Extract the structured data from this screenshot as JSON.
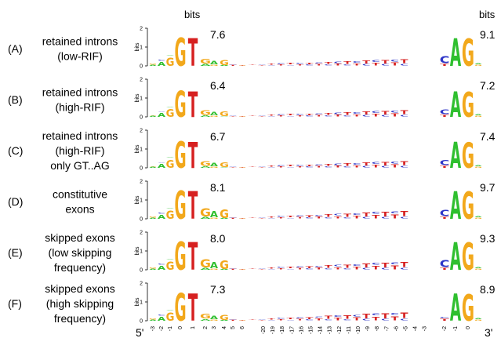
{
  "header": {
    "bits_left": "bits",
    "bits_right": "bits"
  },
  "axis": {
    "y_label": "bits",
    "y_ticks": [
      "2",
      "1",
      "0"
    ],
    "end_5": "5'",
    "end_3": "3'",
    "donor_positions": [
      "-3",
      "-2",
      "-1",
      "0",
      "1",
      "2",
      "3",
      "4",
      "5",
      "6"
    ],
    "intron_positions": [
      "-20",
      "-19",
      "-18",
      "-17",
      "-16",
      "-15",
      "-14",
      "-13",
      "-12",
      "-11",
      "-10",
      "-9",
      "-8",
      "-7",
      "-6",
      "-5",
      "-4",
      "-3"
    ],
    "acceptor_positions": [
      "-2",
      "-1",
      "0"
    ]
  },
  "colors": {
    "A": "#2fbf2f",
    "C": "#2e36c8",
    "G": "#f2a81b",
    "T": "#d62020"
  },
  "rows": [
    {
      "id": "(A)",
      "label": [
        "retained introns",
        "(low-RIF)"
      ],
      "donor_bits": "7.6",
      "acceptor_bits": "9.1"
    },
    {
      "id": "(B)",
      "label": [
        "retained introns",
        "(high-RIF)"
      ],
      "donor_bits": "6.4",
      "acceptor_bits": "7.2"
    },
    {
      "id": "(C)",
      "label": [
        "retained introns",
        "(high-RIF)",
        "only GT..AG"
      ],
      "donor_bits": "6.7",
      "acceptor_bits": "7.4"
    },
    {
      "id": "(D)",
      "label": [
        "constitutive",
        "exons"
      ],
      "donor_bits": "8.1",
      "acceptor_bits": "9.7"
    },
    {
      "id": "(E)",
      "label": [
        "skipped exons",
        "(low skipping",
        "frequency)"
      ],
      "donor_bits": "8.0",
      "acceptor_bits": "9.3"
    },
    {
      "id": "(F)",
      "label": [
        "skipped exons",
        "(high skipping",
        "frequency)"
      ],
      "donor_bits": "7.3",
      "acceptor_bits": "8.9"
    }
  ]
}
